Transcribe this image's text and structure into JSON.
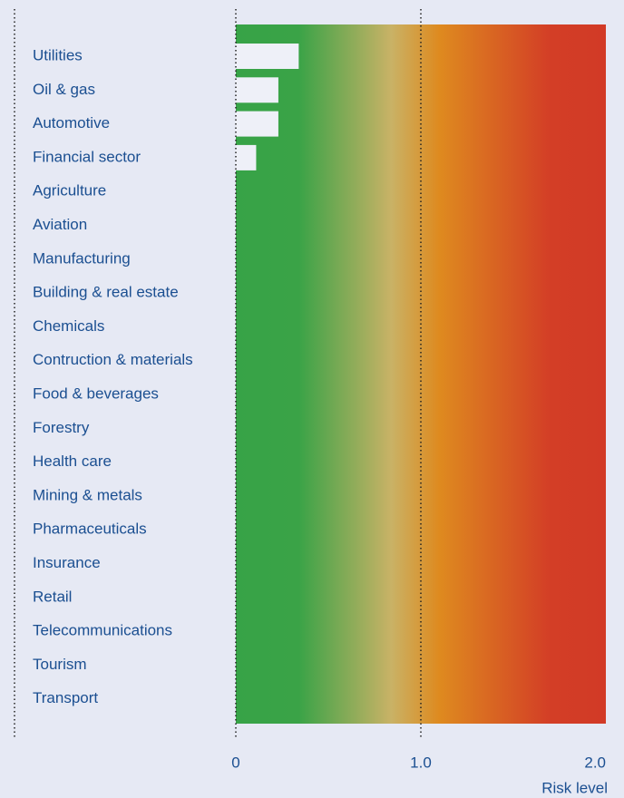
{
  "chart_data": {
    "type": "hbar",
    "categories": [
      "Utilities",
      "Oil & gas",
      "Automotive",
      "Financial sector",
      "Agriculture",
      "Aviation",
      "Manufacturing",
      "Building & real estate",
      "Chemicals",
      "Contruction & materials",
      "Food & beverages",
      "Forestry",
      "Health care",
      "Mining & metals",
      "Pharmaceuticals",
      "Insurance",
      "Retail",
      "Telecommunications",
      "Tourism",
      "Transport"
    ],
    "values": [
      0.34,
      0.23,
      0.23,
      0.11,
      0,
      0,
      0,
      0,
      0,
      0,
      0,
      0,
      0,
      0,
      0,
      0,
      0,
      0,
      0,
      0
    ],
    "color": "#eef0f8",
    "xlim": [
      0,
      2
    ],
    "xticks": [
      0,
      {
        "value": 1,
        "label": "1.0"
      },
      {
        "value": 2,
        "label": "2.0"
      }
    ],
    "xlabel": "Risk level",
    "grid": true
  }
}
